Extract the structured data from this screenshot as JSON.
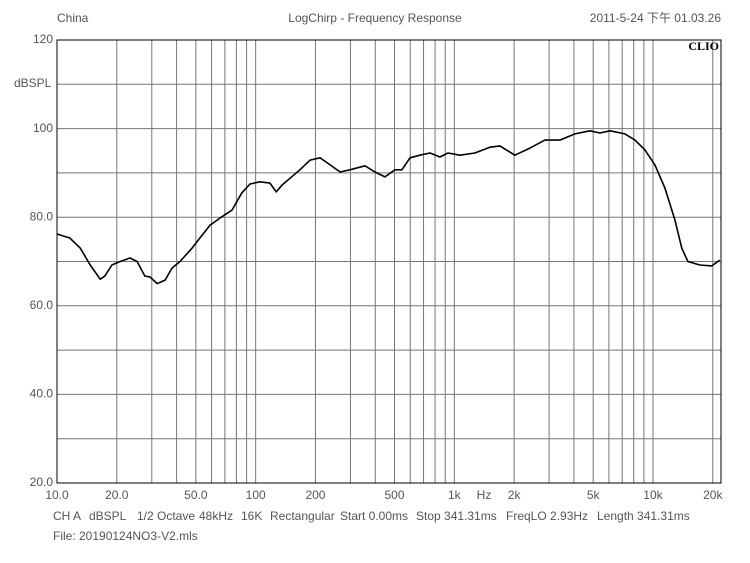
{
  "chart_data": {
    "type": "line",
    "header_left": "China",
    "title": "LogChirp - Frequency Response",
    "header_right": "2011-5-24 下午 01.03.26",
    "logo": "CLIO",
    "y_label": "dBSPL",
    "x_unit": "Hz",
    "x_scale": "log",
    "xlim": [
      10,
      22000
    ],
    "ylim": [
      20,
      120
    ],
    "xticks": [
      {
        "value": 10,
        "label": "10.0"
      },
      {
        "value": 20,
        "label": "20.0"
      },
      {
        "value": 50,
        "label": "50.0"
      },
      100,
      200,
      500,
      {
        "value": 1000,
        "label": "1k"
      },
      {
        "value": 2000,
        "label": "2k"
      },
      {
        "value": 5000,
        "label": "5k"
      },
      {
        "value": 10000,
        "label": "10k"
      },
      {
        "value": 20000,
        "label": "20k"
      }
    ],
    "x_grid": [
      30,
      40,
      60,
      70,
      80,
      90,
      300,
      400,
      600,
      700,
      800,
      900,
      3000,
      4000,
      6000,
      7000,
      8000,
      9000
    ],
    "yticks": [
      {
        "value": 20,
        "label": "20.0"
      },
      {
        "value": 40,
        "label": "40.0"
      },
      {
        "value": 60,
        "label": "60.0"
      },
      {
        "value": 80,
        "label": "80.0"
      },
      100,
      120
    ],
    "y_grid": [
      30,
      50,
      70,
      90,
      110
    ],
    "grid": true,
    "x": [
      10,
      11.6,
      13.1,
      14.7,
      16.5,
      17.4,
      18.9,
      20.8,
      23.3,
      25.3,
      27.7,
      29.4,
      31.9,
      35,
      37.9,
      41.6,
      47.8,
      52.4,
      58.9,
      66.1,
      76,
      85.3,
      93.6,
      105,
      118,
      127,
      136,
      149,
      167,
      188,
      211,
      237,
      266,
      298,
      355,
      399,
      448,
      502,
      545,
      598,
      671,
      754,
      846,
      929,
      1067,
      1270,
      1511,
      1697,
      2018,
      2401,
      2856,
      3401,
      4047,
      4816,
      5407,
      6071,
      7224,
      8120,
      9108,
      10230,
      11480,
      12890,
      13970,
      14990,
      17220,
      19770,
      21680
    ],
    "series": [
      {
        "color": "#000000",
        "values": [
          76.2,
          75.3,
          73,
          69.2,
          66,
          66.7,
          69.2,
          70,
          70.8,
          70,
          66.7,
          66.5,
          65,
          65.8,
          68.5,
          70,
          73,
          75.3,
          78.2,
          79.8,
          81.6,
          85.5,
          87.5,
          88,
          87.7,
          85.7,
          87.3,
          88.8,
          90.7,
          92.9,
          93.4,
          91.8,
          90.2,
          90.7,
          91.6,
          90.2,
          89.1,
          90.7,
          90.7,
          93.4,
          94,
          94.5,
          93.6,
          94.5,
          94,
          94.5,
          95.8,
          96.1,
          94,
          95.6,
          97.4,
          97.4,
          98.8,
          99.5,
          99,
          99.5,
          98.8,
          97.4,
          95.2,
          91.8,
          86.6,
          79.4,
          73,
          70,
          69.2,
          69,
          70.3
        ]
      }
    ],
    "footer": [
      "CH A",
      "dBSPL",
      "1/2 Octave",
      "48kHz",
      "16K",
      "Rectangular",
      "Start 0.00ms",
      "Stop 341.31ms",
      "FreqLO 2.93Hz",
      "Length 341.31ms"
    ],
    "file": "File: 20190124NO3-V2.mls"
  }
}
